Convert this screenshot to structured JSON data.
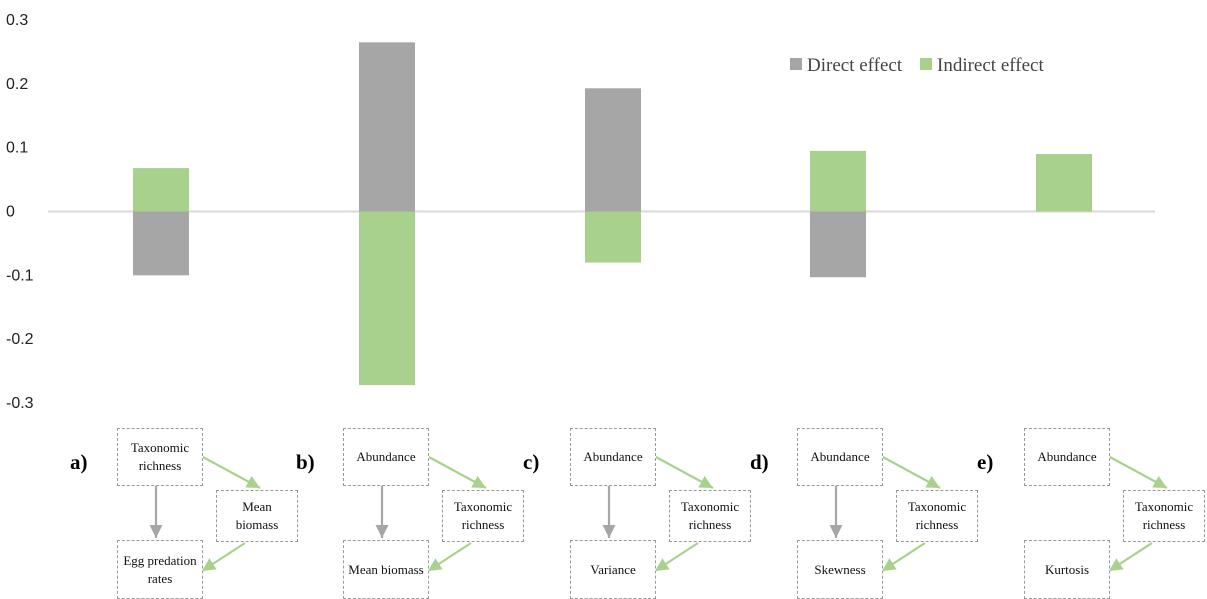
{
  "chart_data": {
    "type": "bar",
    "categories": [
      "a)",
      "b)",
      "c)",
      "d)",
      "e)"
    ],
    "series": [
      {
        "name": "Direct effect",
        "color": "#a6a6a6",
        "values": [
          -0.1,
          0.265,
          0.193,
          -0.103,
          0.0
        ]
      },
      {
        "name": "Indirect effect",
        "color": "#a9d18e",
        "values": [
          0.068,
          -0.272,
          -0.08,
          0.095,
          0.09
        ]
      }
    ],
    "yticks": [
      "0.3",
      "0.2",
      "0.1",
      "0",
      "-0.1",
      "-0.2",
      "-0.3"
    ],
    "ylim": [
      -0.3,
      0.3
    ],
    "grid": false,
    "legend_position": "top-right"
  },
  "diagrams": [
    {
      "label": "a)",
      "top": "Taxonomic richness",
      "mid": "Mean biomass",
      "bottom": "Egg predation rates"
    },
    {
      "label": "b)",
      "top": "Abundance",
      "mid": "Taxonomic richness",
      "bottom": "Mean biomass"
    },
    {
      "label": "c)",
      "top": "Abundance",
      "mid": "Taxonomic richness",
      "bottom": "Variance"
    },
    {
      "label": "d)",
      "top": "Abundance",
      "mid": "Taxonomic richness",
      "bottom": "Skewness"
    },
    {
      "label": "e)",
      "top": "Abundance",
      "mid": "Taxonomic richness",
      "bottom": "Kurtosis"
    }
  ],
  "colors": {
    "direct_arrow": "#a6a6a6",
    "indirect_arrow": "#a9d18e"
  }
}
